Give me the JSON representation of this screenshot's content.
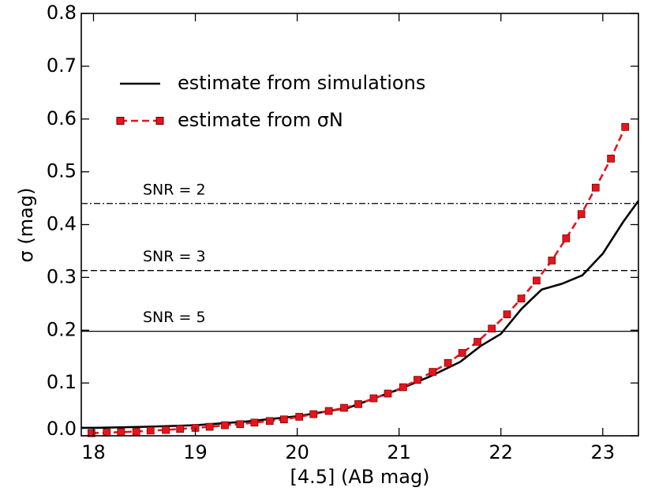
{
  "chart_data": {
    "type": "line",
    "xlabel": "[4.5] (AB mag)",
    "ylabel": "σ (mag)",
    "xlim": [
      17.88,
      23.35
    ],
    "ylim": [
      0,
      0.8
    ],
    "xticks": [
      18,
      19,
      20,
      21,
      22,
      23
    ],
    "yticks": [
      {
        "value": 0,
        "label": "0.0"
      },
      0.1,
      0.2,
      0.3,
      0.4,
      0.5,
      0.6,
      0.7,
      0.8
    ],
    "legend": "upper left",
    "series": [
      {
        "name": "estimate from simulations",
        "color": "#000000",
        "style": "solid",
        "markers": false,
        "x": [
          17.88,
          18.0,
          18.5,
          19.0,
          19.5,
          20.0,
          20.5,
          21.0,
          21.3,
          21.6,
          21.8,
          22.0,
          22.2,
          22.4,
          22.6,
          22.8,
          23.0,
          23.2,
          23.35
        ],
        "values": [
          0.015,
          0.015,
          0.017,
          0.02,
          0.027,
          0.037,
          0.053,
          0.088,
          0.112,
          0.14,
          0.17,
          0.193,
          0.24,
          0.277,
          0.288,
          0.304,
          0.345,
          0.405,
          0.445
        ]
      },
      {
        "name": "estimate from σN",
        "color": "#e8141c",
        "style": "dashed",
        "markers": true,
        "x": [
          17.98,
          18.13,
          18.27,
          18.42,
          18.56,
          18.71,
          18.85,
          19.0,
          19.14,
          19.29,
          19.44,
          19.58,
          19.73,
          19.87,
          20.02,
          20.16,
          20.31,
          20.46,
          20.6,
          20.75,
          20.89,
          21.04,
          21.18,
          21.33,
          21.48,
          21.62,
          21.77,
          21.91,
          22.06,
          22.2,
          22.35,
          22.5,
          22.64,
          22.79,
          22.93,
          23.08,
          23.22
        ],
        "values": [
          0.005,
          0.006,
          0.007,
          0.008,
          0.01,
          0.011,
          0.013,
          0.015,
          0.017,
          0.02,
          0.022,
          0.025,
          0.028,
          0.031,
          0.036,
          0.041,
          0.047,
          0.053,
          0.06,
          0.071,
          0.08,
          0.092,
          0.106,
          0.121,
          0.138,
          0.157,
          0.178,
          0.203,
          0.23,
          0.26,
          0.294,
          0.332,
          0.374,
          0.42,
          0.47,
          0.525,
          0.585
        ]
      }
    ],
    "hlines": [
      {
        "label": "SNR = 2",
        "value": 0.44,
        "style": "dashdot"
      },
      {
        "label": "SNR = 3",
        "value": 0.313,
        "style": "dashed"
      },
      {
        "label": "SNR = 5",
        "value": 0.198,
        "style": "solid"
      }
    ]
  }
}
